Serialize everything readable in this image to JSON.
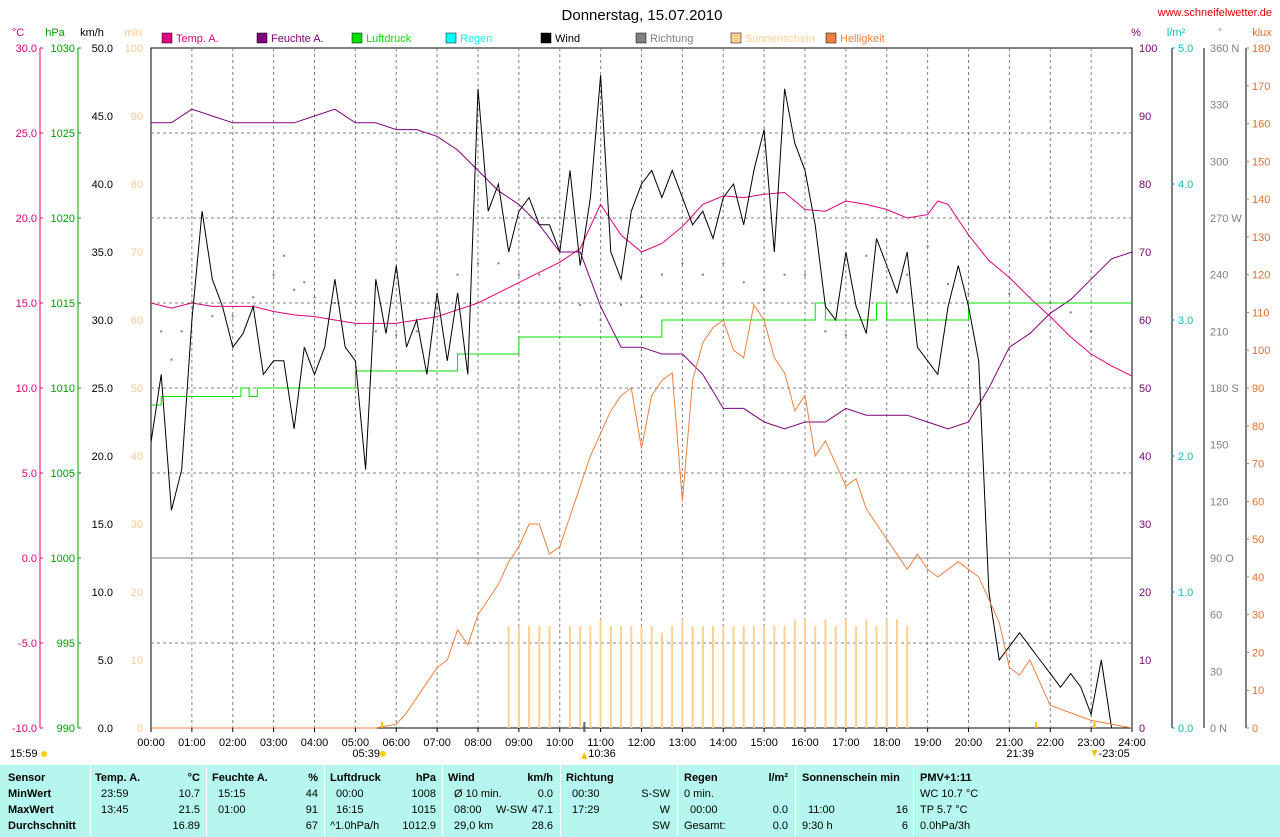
{
  "title": "Donnerstag, 15.07.2010",
  "site": "www.schneifelwetter.de",
  "colors": {
    "temp": "#e0007f",
    "humidity": "#80007f",
    "pressure": "#00e000",
    "rain": "#00ffff",
    "wind": "#000000",
    "direction": "#808080",
    "sunshine": "#ffd090",
    "brightness": "#f08040",
    "axis_temp": "#e0007f",
    "axis_hpa": "#00a000",
    "axis_min": "#ffc890",
    "axis_rain": "#00c0c0",
    "axis_klux": "#e07030",
    "stats_bg": "#b5f7ef"
  },
  "legend": [
    {
      "label": "Temp. A.",
      "color": "#e0007f"
    },
    {
      "label": "Feuchte A.",
      "color": "#80007f"
    },
    {
      "label": "Luftdruck",
      "color": "#00e000"
    },
    {
      "label": "Regen",
      "color": "#00ffff"
    },
    {
      "label": "Wind",
      "color": "#000000"
    },
    {
      "label": "Richtung",
      "color": "#808080"
    },
    {
      "label": "Sonnenschein",
      "color": "#ffd090"
    },
    {
      "label": "Helligkeit",
      "color": "#f08040"
    }
  ],
  "axis_units": {
    "temp": "°C",
    "hpa": "hPa",
    "kmh": "km/h",
    "min": "min",
    "pct": "%",
    "rain": "l/m²",
    "deg": "°",
    "klux": "klux"
  },
  "axis_ticks": {
    "temp": [
      "30.0",
      "25.0",
      "20.0",
      "15.0",
      "10.0",
      "5.0",
      "0.0",
      "-5.0",
      "-10.0"
    ],
    "hpa": [
      "1030",
      "1025",
      "1020",
      "1015",
      "1010",
      "1005",
      "1000",
      "995",
      "990"
    ],
    "kmh": [
      "50.0",
      "45.0",
      "40.0",
      "35.0",
      "30.0",
      "25.0",
      "20.0",
      "15.0",
      "10.0",
      "5.0",
      "0.0"
    ],
    "min": [
      "100",
      "90",
      "80",
      "70",
      "60",
      "50",
      "40",
      "30",
      "20",
      "10",
      "0"
    ],
    "pct": [
      "100",
      "90",
      "80",
      "70",
      "60",
      "50",
      "40",
      "30",
      "20",
      "10",
      "0"
    ],
    "rain": [
      "5.0",
      "4.0",
      "3.0",
      "2.0",
      "1.0",
      "0.0"
    ],
    "deg": [
      "360 N",
      "330",
      "300",
      "270 W",
      "240",
      "210",
      "180 S",
      "150",
      "120",
      "90 O",
      "60",
      "30",
      "0 N"
    ],
    "klux": [
      "180",
      "170",
      "160",
      "150",
      "140",
      "130",
      "120",
      "110",
      "100",
      "90",
      "80",
      "70",
      "60",
      "50",
      "40",
      "30",
      "20",
      "10",
      "0"
    ],
    "time": [
      "00:00",
      "01:00",
      "02:00",
      "03:00",
      "04:00",
      "05:00",
      "06:00",
      "07:00",
      "08:00",
      "09:00",
      "10:00",
      "11:00",
      "12:00",
      "13:00",
      "14:00",
      "15:00",
      "16:00",
      "17:00",
      "18:00",
      "19:00",
      "20:00",
      "21:00",
      "22:00",
      "23:00",
      "24:00"
    ]
  },
  "time_markers": {
    "left": "15:59",
    "sunrise": "05:39",
    "noon": "10:36",
    "sunset": "21:39",
    "end": "23:05"
  },
  "chart_data": {
    "type": "line",
    "title": "Donnerstag, 15.07.2010",
    "x_unit": "hours",
    "xlim": [
      0,
      24
    ],
    "series": [
      {
        "name": "Temp. A.",
        "axis": "°C",
        "ylim": [
          -10,
          30
        ],
        "x": [
          0,
          0.5,
          1,
          1.5,
          2,
          2.5,
          3,
          3.5,
          4,
          4.5,
          5,
          5.5,
          6,
          6.5,
          7,
          7.5,
          8,
          8.5,
          9,
          9.5,
          10,
          10.5,
          11,
          11.5,
          12,
          12.5,
          13,
          13.5,
          14,
          14.5,
          15,
          15.5,
          16,
          16.5,
          17,
          17.5,
          18,
          18.5,
          19,
          19.25,
          19.5,
          20,
          20.5,
          21,
          21.5,
          22,
          22.5,
          23,
          23.5,
          24
        ],
        "y": [
          15.0,
          14.7,
          15.0,
          14.8,
          14.8,
          14.8,
          14.5,
          14.3,
          14.2,
          14.0,
          13.8,
          13.8,
          13.8,
          14.0,
          14.2,
          14.6,
          15.0,
          15.6,
          16.2,
          16.8,
          17.4,
          18.2,
          20.8,
          19.0,
          18.0,
          18.5,
          19.5,
          20.8,
          21.3,
          21.2,
          21.4,
          21.5,
          20.5,
          20.4,
          21.0,
          20.8,
          20.5,
          20.0,
          20.2,
          21.0,
          20.8,
          19.0,
          17.5,
          16.5,
          15.3,
          14.2,
          13.0,
          12.0,
          11.3,
          10.7
        ]
      },
      {
        "name": "Feuchte A.",
        "axis": "%",
        "ylim": [
          0,
          100
        ],
        "x": [
          0,
          0.5,
          1,
          1.5,
          2,
          2.5,
          3,
          3.5,
          4,
          4.5,
          5,
          5.5,
          6,
          6.5,
          7,
          7.5,
          8,
          8.5,
          9,
          9.5,
          10,
          10.5,
          11,
          11.5,
          12,
          12.5,
          13,
          13.5,
          14,
          14.5,
          15,
          15.5,
          16,
          16.5,
          17,
          17.5,
          18,
          18.5,
          19,
          19.5,
          20,
          20.5,
          21,
          21.5,
          22,
          22.5,
          23,
          23.5,
          24
        ],
        "y": [
          89,
          89,
          91,
          90,
          89,
          89,
          89,
          89,
          90,
          91,
          89,
          89,
          88,
          88,
          87,
          85,
          82,
          79,
          77,
          74,
          70,
          70,
          62,
          56,
          56,
          55,
          55,
          52,
          47,
          47,
          45,
          44,
          45,
          45,
          47,
          46,
          46,
          46,
          45,
          44,
          45,
          50,
          56,
          58,
          61,
          63,
          66,
          69,
          70
        ]
      },
      {
        "name": "Luftdruck",
        "axis": "hPa",
        "ylim": [
          990,
          1030
        ],
        "x": [
          0,
          0.25,
          0.5,
          1,
          1.5,
          2,
          2.2,
          2.4,
          2.6,
          3,
          3.5,
          4,
          4.5,
          5,
          5.5,
          6,
          6.5,
          7,
          7.5,
          8,
          8.5,
          9,
          9.5,
          10,
          10.5,
          11,
          11.5,
          12,
          12.5,
          13,
          13.5,
          14,
          14.5,
          15,
          15.5,
          16,
          16.25,
          16.5,
          17,
          17.5,
          17.75,
          18,
          18.5,
          19,
          19.5,
          20,
          21,
          22,
          23,
          24
        ],
        "y": [
          1009,
          1009.5,
          1009.5,
          1009.5,
          1009.5,
          1009.5,
          1010,
          1009.5,
          1010,
          1010,
          1010,
          1010,
          1010,
          1011,
          1011,
          1011,
          1011,
          1011,
          1012,
          1012,
          1012,
          1013,
          1013,
          1013,
          1013,
          1013,
          1013,
          1013,
          1014,
          1014,
          1014,
          1014,
          1014,
          1014,
          1014,
          1014,
          1015,
          1014,
          1014,
          1014,
          1015,
          1014,
          1014,
          1014,
          1014,
          1015,
          1015,
          1015,
          1015,
          1015
        ]
      },
      {
        "name": "Wind",
        "axis": "km/h",
        "ylim": [
          0,
          50
        ],
        "x": [
          0,
          0.25,
          0.5,
          0.75,
          1,
          1.25,
          1.5,
          1.75,
          2,
          2.25,
          2.5,
          2.75,
          3,
          3.25,
          3.5,
          3.75,
          4,
          4.25,
          4.5,
          4.75,
          5,
          5.25,
          5.5,
          5.75,
          6,
          6.25,
          6.5,
          6.75,
          7,
          7.25,
          7.5,
          7.75,
          8,
          8.25,
          8.5,
          8.75,
          9,
          9.25,
          9.5,
          9.75,
          10,
          10.25,
          10.5,
          10.75,
          11,
          11.25,
          11.5,
          11.75,
          12,
          12.25,
          12.5,
          12.75,
          13,
          13.25,
          13.5,
          13.75,
          14,
          14.25,
          14.5,
          14.75,
          15,
          15.25,
          15.5,
          15.75,
          16,
          16.25,
          16.5,
          16.75,
          17,
          17.25,
          17.5,
          17.75,
          18,
          18.25,
          18.5,
          18.75,
          19,
          19.25,
          19.5,
          19.75,
          20,
          20.25,
          20.5,
          20.75,
          21,
          21.25,
          21.5,
          21.75,
          22,
          22.25,
          22.5,
          22.75,
          23,
          23.25,
          23.5
        ],
        "y": [
          21,
          26,
          16,
          19,
          30,
          38,
          33,
          31,
          28,
          29,
          31,
          26,
          27,
          27,
          22,
          28,
          26,
          28,
          33,
          28,
          27,
          19,
          33,
          29,
          34,
          28,
          30,
          26,
          32,
          27,
          32,
          26,
          47,
          38,
          40,
          35,
          38,
          39,
          37,
          37,
          35,
          41,
          34,
          39,
          48,
          35,
          33,
          38,
          40,
          41,
          39,
          41,
          39,
          37,
          38,
          36,
          39,
          40,
          37,
          41,
          44,
          35,
          47,
          43,
          41,
          37,
          31,
          30,
          35,
          31,
          29,
          36,
          34,
          32,
          35,
          28,
          27,
          26,
          31,
          34,
          31,
          27,
          10,
          5,
          6,
          7,
          6,
          5,
          4,
          3,
          4,
          3,
          1,
          5,
          0
        ]
      },
      {
        "name": "Helligkeit",
        "axis": "klux",
        "ylim": [
          0,
          180
        ],
        "x": [
          0,
          5.5,
          6,
          6.25,
          6.5,
          6.75,
          7,
          7.25,
          7.5,
          7.75,
          8,
          8.25,
          8.5,
          8.75,
          9,
          9.25,
          9.5,
          9.75,
          10,
          10.25,
          10.5,
          10.75,
          11,
          11.25,
          11.5,
          11.75,
          12,
          12.25,
          12.5,
          12.75,
          13,
          13.25,
          13.5,
          13.75,
          14,
          14.25,
          14.5,
          14.75,
          15,
          15.25,
          15.5,
          15.75,
          16,
          16.25,
          16.5,
          16.75,
          17,
          17.25,
          17.5,
          17.75,
          18,
          18.25,
          18.5,
          18.75,
          19,
          19.25,
          19.5,
          19.75,
          20,
          20.25,
          20.5,
          20.75,
          21,
          21.25,
          21.5,
          21.75,
          22,
          22.5,
          23,
          24
        ],
        "y": [
          0,
          0,
          1,
          4,
          8,
          12,
          16,
          18,
          26,
          22,
          30,
          34,
          38,
          44,
          48,
          54,
          54,
          46,
          48,
          56,
          64,
          72,
          78,
          84,
          88,
          90,
          74,
          88,
          92,
          94,
          60,
          92,
          102,
          106,
          108,
          100,
          98,
          112,
          108,
          98,
          94,
          84,
          88,
          72,
          76,
          70,
          64,
          66,
          58,
          54,
          50,
          46,
          42,
          46,
          42,
          40,
          42,
          44,
          42,
          40,
          34,
          28,
          16,
          14,
          18,
          12,
          6,
          4,
          2,
          0
        ]
      }
    ],
    "wind_direction": {
      "name": "Richtung",
      "axis": "°",
      "ylim": [
        0,
        360
      ],
      "x": [
        0.25,
        0.5,
        0.75,
        1,
        1.5,
        2,
        2.5,
        3,
        3.25,
        3.5,
        3.75,
        4,
        4.5,
        5,
        5.5,
        6,
        6.5,
        7,
        7.5,
        8,
        8.5,
        9,
        9.5,
        10,
        10.5,
        11,
        11.5,
        12,
        12.5,
        13,
        13.5,
        14,
        14.5,
        15,
        15.5,
        16,
        16.5,
        17,
        17.5,
        18,
        18.5,
        19,
        19.5,
        20,
        21,
        21.5,
        22,
        22.5,
        23
      ],
      "y": [
        210,
        195,
        210,
        225,
        218,
        218,
        228,
        240,
        250,
        232,
        236,
        228,
        225,
        214,
        210,
        208,
        210,
        222,
        240,
        246,
        246,
        240,
        240,
        233,
        224,
        216,
        224,
        228,
        240,
        246,
        240,
        246,
        236,
        232,
        240,
        240,
        210,
        208,
        250,
        244,
        240,
        255,
        235,
        230,
        230,
        228,
        225,
        220,
        210
      ]
    },
    "sunshine": {
      "name": "Sonnenschein",
      "axis": "min",
      "ylim": [
        0,
        100
      ],
      "x": [
        8.75,
        9,
        9.25,
        9.5,
        9.75,
        10.25,
        10.5,
        10.75,
        11,
        11.25,
        11.5,
        11.75,
        12,
        12.25,
        12.5,
        12.75,
        13,
        13.25,
        13.5,
        13.75,
        14,
        14.25,
        14.5,
        14.75,
        15,
        15.25,
        15.5,
        15.75,
        16,
        16.25,
        16.5,
        16.75,
        17,
        17.25,
        17.5,
        17.75,
        18,
        18.25,
        18.5
      ],
      "y": [
        15,
        15,
        15,
        15,
        15,
        15,
        15,
        15,
        16,
        15,
        15,
        15,
        15,
        15,
        14,
        15,
        16,
        15,
        15,
        15,
        15,
        15,
        15,
        15,
        15,
        15,
        15,
        16,
        16,
        15,
        16,
        15,
        16,
        15,
        16,
        15,
        16,
        16,
        15
      ]
    }
  },
  "stats": {
    "sensor": {
      "title": "Sensor",
      "min": "MinWert",
      "max": "MaxWert",
      "avg": "Durchschnitt"
    },
    "temp": {
      "title": "Temp. A.",
      "unit": "°C",
      "min_time": "23:59",
      "min_val": "10.7",
      "max_time": "13:45",
      "max_val": "21.5",
      "avg": "16.89"
    },
    "humidity": {
      "title": "Feuchte A.",
      "unit": "%",
      "min_time": "15:15",
      "min_val": "44",
      "max_time": "01:00",
      "max_val": "91",
      "avg": "67"
    },
    "pressure": {
      "title": "Luftdruck",
      "unit": "hPa",
      "min_time": "00:00",
      "min_val": "1008",
      "max_time": "16:15",
      "max_val": "1015",
      "avg_label": "^1.0hPa/h",
      "avg": "1012.9"
    },
    "wind": {
      "title": "Wind",
      "unit": "km/h",
      "min_label": "Ø 10 min.",
      "min_val": "0.0",
      "max_time": "08:00",
      "max_dir": "W-SW",
      "max_val": "47.1",
      "avg_label": "29,0 km",
      "avg": "28.6"
    },
    "direction": {
      "title": "Richtung",
      "min_time": "00:30",
      "min_val": "S-SW",
      "max_time": "17:29",
      "max_val": "W",
      "avg": "SW"
    },
    "rain": {
      "title": "Regen",
      "unit": "l/m²",
      "row1": "0 min.",
      "max_time": "00:00",
      "max_val": "0.0",
      "avg_label": "Gesamt:",
      "avg": "0.0"
    },
    "sunshine": {
      "title": "Sonnenschein min",
      "max_time": "11:00",
      "max_val": "16",
      "avg_label": "9:30 h",
      "avg": "6"
    },
    "pmv": {
      "title": "PMV+1:11",
      "row1": "WC 10.7 °C",
      "row2": "TP 5.7 °C",
      "row3": "0.0hPa/3h"
    }
  }
}
